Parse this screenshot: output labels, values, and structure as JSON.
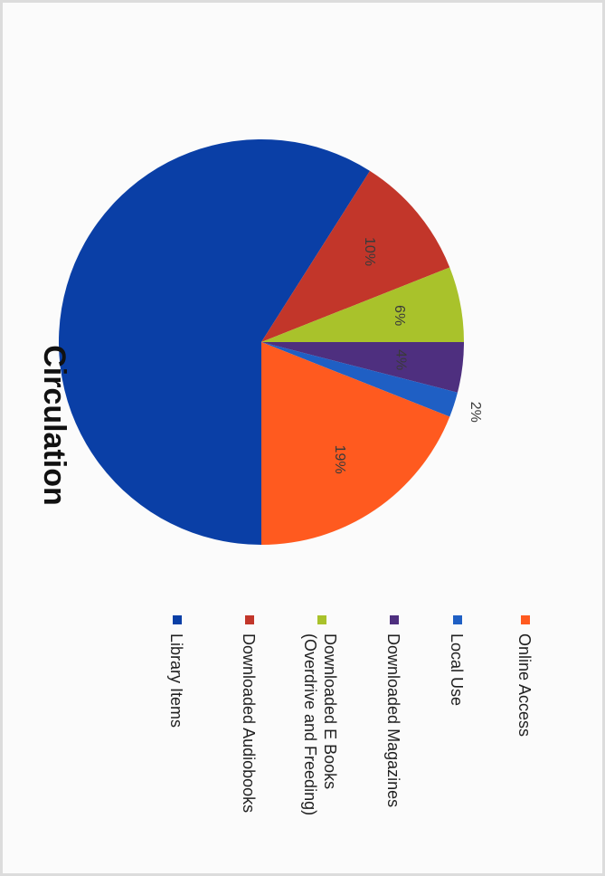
{
  "chart_data": {
    "type": "pie",
    "title": "Circulation",
    "orientation": "rotated-90-clockwise",
    "legend_placement": "right",
    "slices": [
      {
        "name": "Library Items",
        "value": 59,
        "label": "",
        "color": "#0a3fa6"
      },
      {
        "name": "Downloaded Audiobooks",
        "value": 10,
        "label": "10%",
        "color": "#c2362a"
      },
      {
        "name": "Downloaded E Books (Overdrive and Freeding)",
        "value": 6,
        "label": "6%",
        "color": "#a9c22b"
      },
      {
        "name": "Downloaded Magazines",
        "value": 4,
        "label": "4%",
        "color": "#4e2f7f"
      },
      {
        "name": "Local Use",
        "value": 2,
        "label": "2%",
        "color": "#1f5fc4"
      },
      {
        "name": "Online Access",
        "value": 19,
        "label": "19%",
        "color": "#ff5a1f"
      }
    ]
  }
}
